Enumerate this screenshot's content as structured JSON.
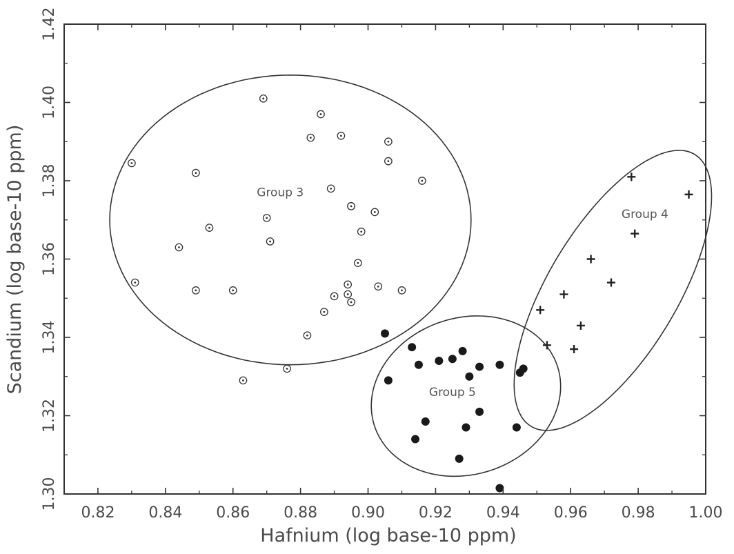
{
  "chart_data": {
    "type": "scatter",
    "title": "",
    "xlabel": "Hafnium (log base-10 ppm)",
    "ylabel": "Scandium (log base-10 ppm)",
    "xlim": [
      0.81,
      1.0
    ],
    "ylim": [
      1.3,
      1.42
    ],
    "x_ticks": [
      "0.82",
      "0.84",
      "0.86",
      "0.88",
      "0.90",
      "0.92",
      "0.94",
      "0.96",
      "0.98",
      "1.00"
    ],
    "y_ticks": [
      "1.30",
      "1.32",
      "1.34",
      "1.36",
      "1.38",
      "1.40",
      "1.42"
    ],
    "grid": false,
    "legend": "none",
    "series": [
      {
        "name": "Group 3",
        "marker": "circle-dot",
        "x": [
          0.83,
          0.831,
          0.844,
          0.849,
          0.849,
          0.853,
          0.86,
          0.863,
          0.869,
          0.87,
          0.871,
          0.876,
          0.882,
          0.883,
          0.886,
          0.887,
          0.889,
          0.89,
          0.892,
          0.894,
          0.894,
          0.895,
          0.895,
          0.895,
          0.897,
          0.898,
          0.902,
          0.903,
          0.906,
          0.906,
          0.91,
          0.916
        ],
        "y": [
          1.3845,
          1.354,
          1.363,
          1.352,
          1.382,
          1.368,
          1.352,
          1.329,
          1.401,
          1.3705,
          1.3645,
          1.332,
          1.3405,
          1.391,
          1.397,
          1.3465,
          1.378,
          1.3505,
          1.3915,
          1.3535,
          1.351,
          1.349,
          1.3735,
          1.3735,
          1.359,
          1.367,
          1.372,
          1.353,
          1.39,
          1.385,
          1.352,
          1.38
        ]
      },
      {
        "name": "Group 4",
        "marker": "plus",
        "x": [
          0.951,
          0.953,
          0.958,
          0.961,
          0.963,
          0.966,
          0.972,
          0.978,
          0.979,
          0.995
        ],
        "y": [
          1.347,
          1.338,
          1.351,
          1.337,
          1.343,
          1.36,
          1.354,
          1.381,
          1.3665,
          1.3765
        ]
      },
      {
        "name": "Group 5",
        "marker": "filled-circle",
        "x": [
          0.905,
          0.906,
          0.913,
          0.914,
          0.915,
          0.917,
          0.921,
          0.925,
          0.927,
          0.928,
          0.929,
          0.93,
          0.933,
          0.933,
          0.939,
          0.939,
          0.944,
          0.945,
          0.946
        ],
        "y": [
          1.341,
          1.329,
          1.3375,
          1.314,
          1.333,
          1.3185,
          1.334,
          1.3345,
          1.309,
          1.3365,
          1.317,
          1.33,
          1.3325,
          1.321,
          1.3015,
          1.333,
          1.317,
          1.331,
          1.332
        ]
      }
    ],
    "annotations": [
      {
        "text": "Group 3",
        "x": 0.874,
        "y": 1.376
      },
      {
        "text": "Group 4",
        "x": 0.982,
        "y": 1.3705
      },
      {
        "text": "Group 5",
        "x": 0.925,
        "y": 1.325
      }
    ],
    "ellipses": [
      {
        "name": "Group 3",
        "cx": 0.877,
        "cy": 1.37,
        "rx": 0.0535,
        "ry": 0.037,
        "angle": 0
      },
      {
        "name": "Group 4",
        "cx": 0.9725,
        "cy": 1.352,
        "rx": 0.047,
        "ry": 0.0165,
        "angle": 59
      },
      {
        "name": "Group 5",
        "cx": 0.929,
        "cy": 1.325,
        "rx": 0.0285,
        "ry": 0.02,
        "angle": 18
      }
    ]
  }
}
